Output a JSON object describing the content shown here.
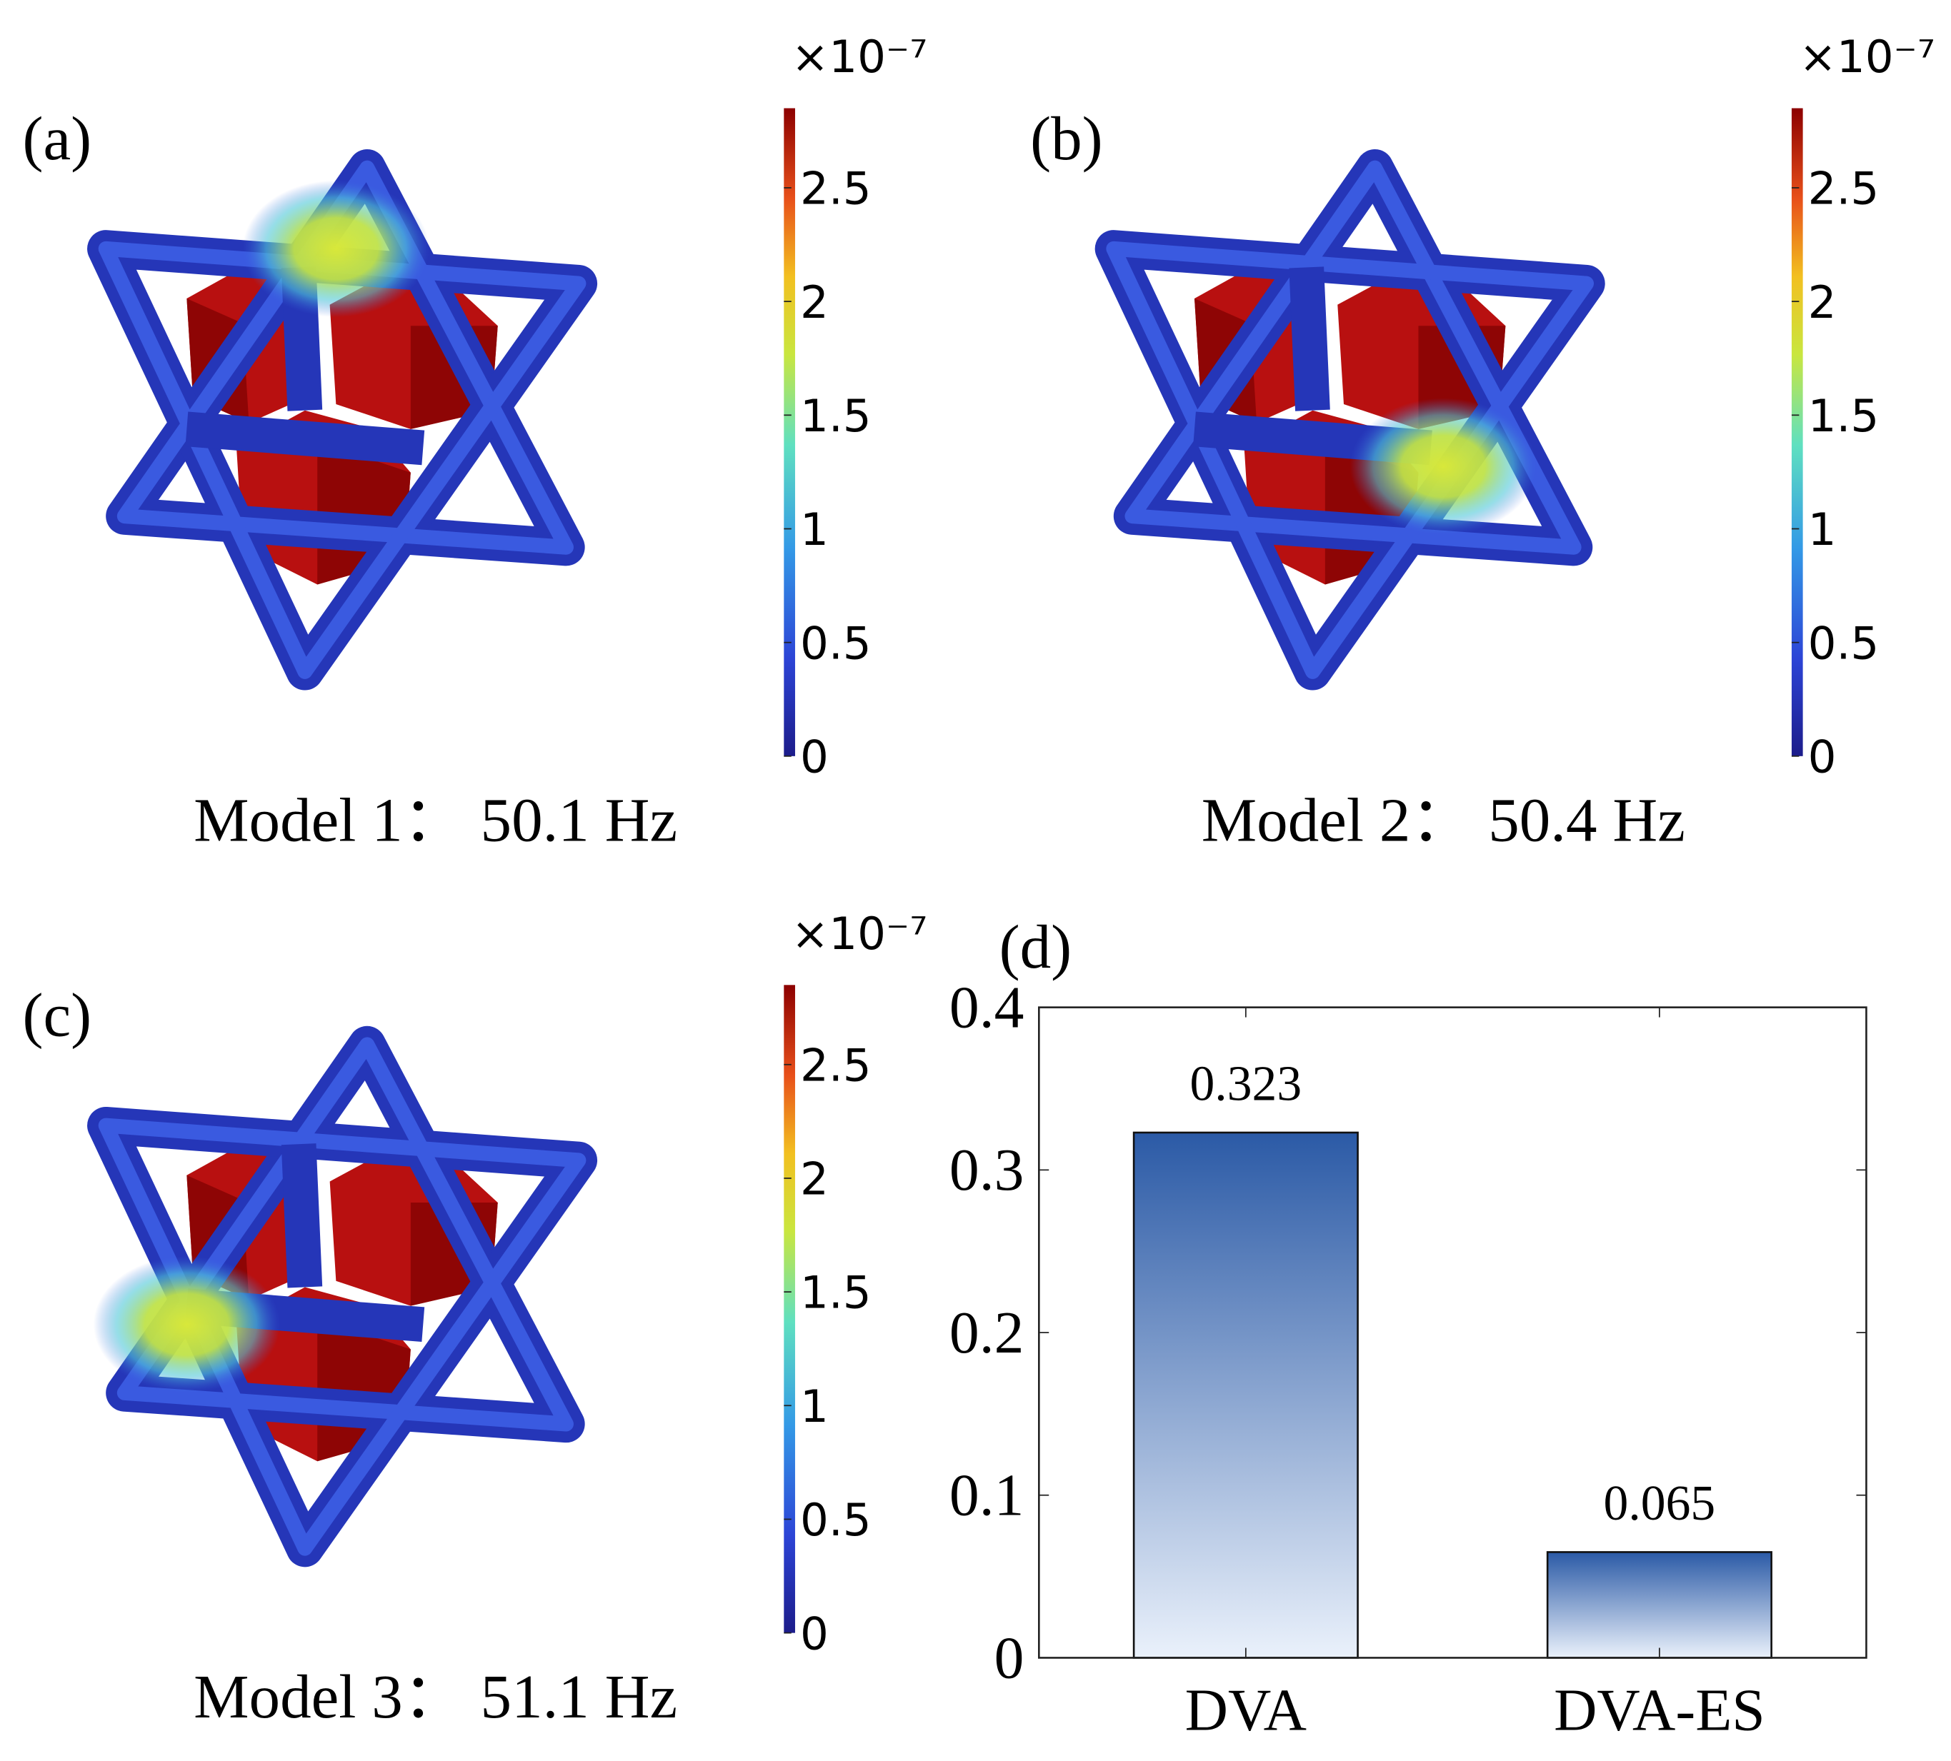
{
  "chart_data": [
    {
      "type": "mode-shape",
      "panel_label": "(a)",
      "caption": "Model 1：  50.1 Hz",
      "colorbar_multiplier": "×10⁻⁷",
      "clim": [
        0,
        2.85
      ],
      "cticks": [
        0,
        0.5,
        1,
        1.5,
        2,
        2.5
      ]
    },
    {
      "type": "mode-shape",
      "panel_label": "(b)",
      "caption": "Model 2：  50.4 Hz",
      "colorbar_multiplier": "×10⁻⁷",
      "clim": [
        0,
        2.85
      ],
      "cticks": [
        0,
        0.5,
        1,
        1.5,
        2,
        2.5
      ]
    },
    {
      "type": "mode-shape",
      "panel_label": "(c)",
      "caption": "Model 3：  51.1 Hz",
      "colorbar_multiplier": "×10⁻⁷",
      "clim": [
        0,
        2.85
      ],
      "cticks": [
        0,
        0.5,
        1,
        1.5,
        2,
        2.5
      ]
    },
    {
      "type": "bar",
      "panel_label": "(d)",
      "categories": [
        "DVA",
        "DVA-ES"
      ],
      "values": [
        0.323,
        0.065
      ],
      "ylim": [
        0,
        0.4
      ],
      "yticks": [
        0,
        0.1,
        0.2,
        0.3,
        0.4
      ],
      "color_top": "#2b5aa6",
      "color_bottom": "#eaf1fb",
      "data_labels": true
    }
  ]
}
